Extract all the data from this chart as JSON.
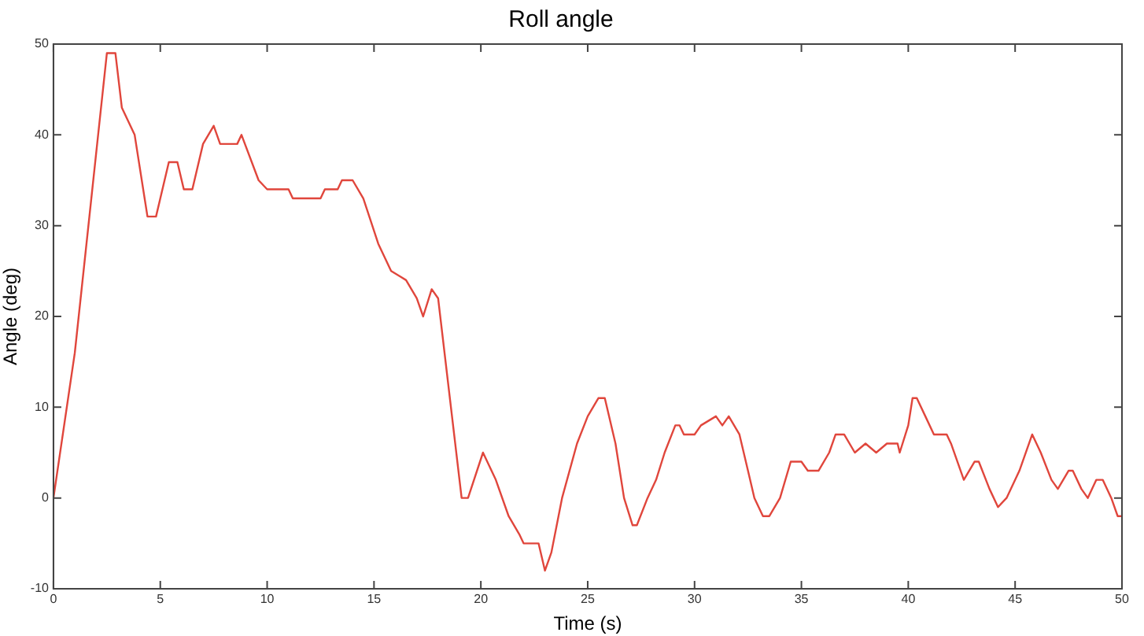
{
  "chart_data": {
    "type": "line",
    "title": "Roll angle",
    "xlabel": "Time (s)",
    "ylabel": "Angle (deg)",
    "xlim": [
      0,
      50
    ],
    "xticks": [
      0,
      5,
      10,
      15,
      20,
      25,
      30,
      35,
      40,
      45,
      50
    ],
    "ylim": [
      -10,
      50
    ],
    "yticks": [
      -10,
      0,
      10,
      20,
      30,
      40,
      50
    ],
    "grid": false,
    "legend": false,
    "marker": "none",
    "line_style": "solid",
    "series": [
      {
        "color": "#e0463c",
        "x": [
          0,
          1,
          2.0,
          2.5,
          2.9,
          3.2,
          3.8,
          4.4,
          4.8,
          5.4,
          5.8,
          6.1,
          6.5,
          7.0,
          7.5,
          7.8,
          8.6,
          8.8,
          9.6,
          10,
          11,
          11.2,
          12.5,
          12.7,
          13.3,
          13.5,
          14,
          14.5,
          15.2,
          15.8,
          16.5,
          17,
          17.3,
          17.7,
          18,
          18.6,
          19.1,
          19.4,
          20.1,
          20.7,
          21.3,
          21.8,
          22,
          22.7,
          23.0,
          23.3,
          23.8,
          24.5,
          25,
          25.5,
          25.8,
          26.3,
          26.7,
          27.1,
          27.3,
          27.8,
          28.2,
          28.6,
          29.1,
          29.3,
          29.5,
          30,
          30.3,
          31,
          31.3,
          31.6,
          32.1,
          32.5,
          32.8,
          33.2,
          33.5,
          34,
          34.5,
          35,
          35.3,
          35.8,
          36.3,
          36.6,
          37,
          37.5,
          38,
          38.5,
          39,
          39.5,
          39.6,
          40,
          40.2,
          40.4,
          40.8,
          41.2,
          41.8,
          42,
          42.6,
          43.1,
          43.3,
          43.8,
          44.2,
          44.6,
          45.2,
          45.8,
          46.2,
          46.7,
          47,
          47.5,
          47.7,
          48.1,
          48.4,
          48.8,
          49.1,
          49.5,
          49.8,
          50
        ],
        "values": [
          0,
          16,
          38,
          49,
          49,
          43,
          40,
          31,
          31,
          37,
          37,
          34,
          34,
          39,
          41,
          39,
          39,
          40,
          35,
          34,
          34,
          33,
          33,
          34,
          34,
          35,
          35,
          33,
          28,
          25,
          24,
          22,
          20,
          23,
          22,
          10,
          0,
          0,
          5,
          2,
          -2,
          -4,
          -5,
          -5,
          -8,
          -6,
          0,
          6,
          9,
          11,
          11,
          6,
          0,
          -3,
          -3,
          0,
          2,
          5,
          8,
          8,
          7,
          7,
          8,
          9,
          8,
          9,
          7,
          3,
          0,
          -2,
          -2,
          0,
          4,
          4,
          3,
          3,
          5,
          7,
          7,
          5,
          6,
          5,
          6,
          6,
          5,
          8,
          11,
          11,
          9,
          7,
          7,
          6,
          2,
          4,
          4,
          1,
          -1,
          0,
          3,
          7,
          5,
          2,
          1,
          3,
          3,
          1,
          0,
          2,
          2,
          0,
          -2,
          -2
        ]
      }
    ]
  }
}
